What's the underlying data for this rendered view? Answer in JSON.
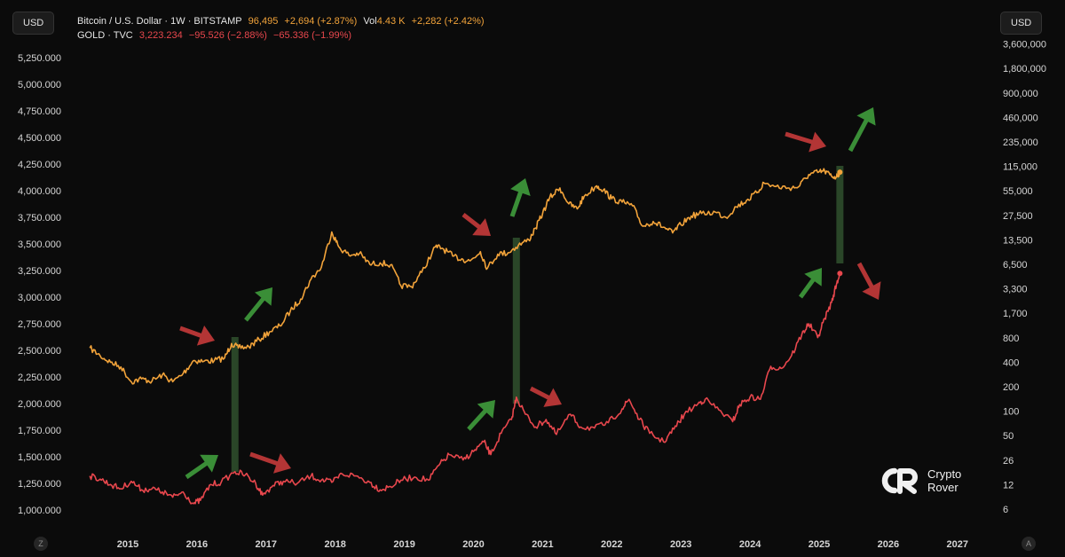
{
  "left_scale_button": "USD",
  "right_scale_button": "USD",
  "legend": {
    "btc": {
      "name": "Bitcoin / U.S. Dollar · 1W · BITSTAMP",
      "price": "96,495",
      "change": "+2,694 (+2.87%)",
      "vol_label": "Vol",
      "vol_value": "4.43 K",
      "vol_change": "+2,282 (+2.42%)"
    },
    "gold": {
      "name": "GOLD · TVC",
      "price": "3,223.234",
      "change": "−95.526 (−2.88%)",
      "change2": "−65.336 (−1.99%)"
    }
  },
  "corner_left": "Z",
  "corner_right": "A",
  "watermark": {
    "line1": "Crypto",
    "line2": "Rover"
  },
  "colors": {
    "btc": "#f2a33a",
    "gold": "#e8474d",
    "arrow_green": "#3f9a3c",
    "arrow_red": "#c23a3a",
    "highlight_bar": "#2e4d2b",
    "background": "#0b0b0b"
  },
  "chart_data": {
    "type": "line",
    "x_axis": {
      "ticks": [
        "2015",
        "2016",
        "2017",
        "2018",
        "2019",
        "2020",
        "2021",
        "2022",
        "2023",
        "2024",
        "2025",
        "2026",
        "2027"
      ],
      "range": [
        2014.35,
        2027.5
      ]
    },
    "left_axis": {
      "unit": "USD",
      "scale": "linear",
      "ticks": [
        "1,000.000",
        "1,250.000",
        "1,500.000",
        "1,750.000",
        "2,000.000",
        "2,250.000",
        "2,500.000",
        "2,750.000",
        "3,000.000",
        "3,250.000",
        "3,500.000",
        "3,750.000",
        "4,000.000",
        "4,250.000",
        "4,500.000",
        "4,750.000",
        "5,000.000",
        "5,250.000"
      ],
      "range": [
        1000,
        5250
      ]
    },
    "right_axis": {
      "unit": "USD",
      "scale": "log",
      "ticks": [
        "6",
        "12",
        "26",
        "50",
        "100",
        "200",
        "400",
        "800",
        "1,700",
        "3,300",
        "6,500",
        "13,500",
        "27,500",
        "55,000",
        "115,000",
        "235,000",
        "460,000",
        "900,000",
        "1,800,000",
        "3,600,000"
      ]
    },
    "series": [
      {
        "name": "Bitcoin / U.S. Dollar",
        "axis": "right",
        "points": [
          [
            2014.45,
            600
          ],
          [
            2014.6,
            480
          ],
          [
            2014.75,
            400
          ],
          [
            2014.9,
            350
          ],
          [
            2015.05,
            230
          ],
          [
            2015.2,
            250
          ],
          [
            2015.35,
            235
          ],
          [
            2015.5,
            280
          ],
          [
            2015.65,
            230
          ],
          [
            2015.8,
            290
          ],
          [
            2015.95,
            420
          ],
          [
            2016.1,
            410
          ],
          [
            2016.25,
            420
          ],
          [
            2016.4,
            450
          ],
          [
            2016.5,
            680
          ],
          [
            2016.6,
            600
          ],
          [
            2016.75,
            620
          ],
          [
            2016.9,
            760
          ],
          [
            2017.05,
            960
          ],
          [
            2017.2,
            1150
          ],
          [
            2017.35,
            1800
          ],
          [
            2017.5,
            2500
          ],
          [
            2017.65,
            4300
          ],
          [
            2017.8,
            6000
          ],
          [
            2017.95,
            17000
          ],
          [
            2018.05,
            11000
          ],
          [
            2018.2,
            8500
          ],
          [
            2018.35,
            9000
          ],
          [
            2018.5,
            6500
          ],
          [
            2018.65,
            6800
          ],
          [
            2018.8,
            6400
          ],
          [
            2018.95,
            3600
          ],
          [
            2019.1,
            3500
          ],
          [
            2019.25,
            5200
          ],
          [
            2019.45,
            11000
          ],
          [
            2019.55,
            10500
          ],
          [
            2019.7,
            8300
          ],
          [
            2019.85,
            7500
          ],
          [
            2019.95,
            7200
          ],
          [
            2020.1,
            9500
          ],
          [
            2020.2,
            5800
          ],
          [
            2020.35,
            8800
          ],
          [
            2020.5,
            9200
          ],
          [
            2020.65,
            11500
          ],
          [
            2020.8,
            13500
          ],
          [
            2020.9,
            19000
          ],
          [
            2021.0,
            29000
          ],
          [
            2021.1,
            45000
          ],
          [
            2021.25,
            60000
          ],
          [
            2021.38,
            38000
          ],
          [
            2021.5,
            33000
          ],
          [
            2021.6,
            47000
          ],
          [
            2021.78,
            64000
          ],
          [
            2021.88,
            57000
          ],
          [
            2022.0,
            44000
          ],
          [
            2022.15,
            40000
          ],
          [
            2022.3,
            36000
          ],
          [
            2022.45,
            20000
          ],
          [
            2022.6,
            23000
          ],
          [
            2022.75,
            19500
          ],
          [
            2022.88,
            16500
          ],
          [
            2023.0,
            21000
          ],
          [
            2023.15,
            27000
          ],
          [
            2023.3,
            29000
          ],
          [
            2023.5,
            30000
          ],
          [
            2023.65,
            26000
          ],
          [
            2023.8,
            35000
          ],
          [
            2023.95,
            42000
          ],
          [
            2024.1,
            52000
          ],
          [
            2024.2,
            70000
          ],
          [
            2024.35,
            63000
          ],
          [
            2024.55,
            60000
          ],
          [
            2024.7,
            62000
          ],
          [
            2024.85,
            90000
          ],
          [
            2024.98,
            96000
          ],
          [
            2025.08,
            100000
          ],
          [
            2025.18,
            85000
          ],
          [
            2025.25,
            84000
          ],
          [
            2025.3,
            96495
          ]
        ]
      },
      {
        "name": "GOLD",
        "axis": "left",
        "points": [
          [
            2014.45,
            1320
          ],
          [
            2014.6,
            1290
          ],
          [
            2014.75,
            1240
          ],
          [
            2014.9,
            1200
          ],
          [
            2015.05,
            1270
          ],
          [
            2015.2,
            1190
          ],
          [
            2015.35,
            1200
          ],
          [
            2015.5,
            1170
          ],
          [
            2015.65,
            1120
          ],
          [
            2015.8,
            1170
          ],
          [
            2015.95,
            1060
          ],
          [
            2016.05,
            1090
          ],
          [
            2016.2,
            1240
          ],
          [
            2016.35,
            1260
          ],
          [
            2016.55,
            1360
          ],
          [
            2016.7,
            1330
          ],
          [
            2016.85,
            1250
          ],
          [
            2016.95,
            1140
          ],
          [
            2017.1,
            1230
          ],
          [
            2017.25,
            1270
          ],
          [
            2017.45,
            1250
          ],
          [
            2017.65,
            1320
          ],
          [
            2017.8,
            1280
          ],
          [
            2017.95,
            1260
          ],
          [
            2018.1,
            1340
          ],
          [
            2018.3,
            1320
          ],
          [
            2018.5,
            1260
          ],
          [
            2018.65,
            1190
          ],
          [
            2018.8,
            1220
          ],
          [
            2018.95,
            1280
          ],
          [
            2019.15,
            1310
          ],
          [
            2019.35,
            1280
          ],
          [
            2019.5,
            1420
          ],
          [
            2019.65,
            1520
          ],
          [
            2019.85,
            1470
          ],
          [
            2020.0,
            1550
          ],
          [
            2020.15,
            1640
          ],
          [
            2020.25,
            1520
          ],
          [
            2020.4,
            1720
          ],
          [
            2020.55,
            1850
          ],
          [
            2020.62,
            2060
          ],
          [
            2020.75,
            1900
          ],
          [
            2020.9,
            1780
          ],
          [
            2021.05,
            1850
          ],
          [
            2021.2,
            1710
          ],
          [
            2021.4,
            1900
          ],
          [
            2021.55,
            1780
          ],
          [
            2021.75,
            1770
          ],
          [
            2021.95,
            1820
          ],
          [
            2022.15,
            1950
          ],
          [
            2022.25,
            2040
          ],
          [
            2022.4,
            1850
          ],
          [
            2022.55,
            1720
          ],
          [
            2022.75,
            1640
          ],
          [
            2022.9,
            1760
          ],
          [
            2023.05,
            1900
          ],
          [
            2023.25,
            2000
          ],
          [
            2023.35,
            2040
          ],
          [
            2023.55,
            1940
          ],
          [
            2023.75,
            1830
          ],
          [
            2023.85,
            1990
          ],
          [
            2024.0,
            2060
          ],
          [
            2024.15,
            2040
          ],
          [
            2024.3,
            2350
          ],
          [
            2024.45,
            2330
          ],
          [
            2024.6,
            2450
          ],
          [
            2024.75,
            2650
          ],
          [
            2024.85,
            2750
          ],
          [
            2024.98,
            2620
          ],
          [
            2025.08,
            2800
          ],
          [
            2025.18,
            2950
          ],
          [
            2025.25,
            3120
          ],
          [
            2025.3,
            3223
          ]
        ]
      }
    ]
  }
}
